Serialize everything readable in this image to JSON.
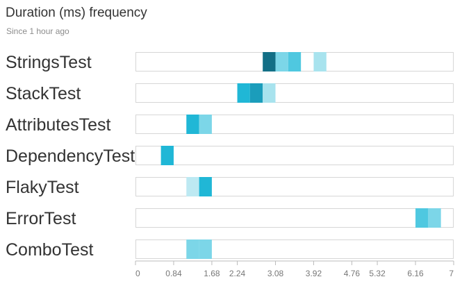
{
  "header": {
    "title": "Duration (ms) frequency",
    "subtitle": "Since 1 hour ago"
  },
  "colors": {
    "track_border": "#d6d6d6",
    "axis": "#bbbbbb",
    "bin_levels": [
      "#bde9f2",
      "#a8e3ee",
      "#7cd6e8",
      "#4fc8e0",
      "#20b7d6",
      "#1b9dbb",
      "#136f86"
    ]
  },
  "chart_data": {
    "type": "heatmap",
    "title": "Duration (ms) frequency",
    "subtitle": "Since 1 hour ago",
    "xlabel": "",
    "ylabel": "",
    "xlim": [
      0,
      7
    ],
    "x_ticks": [
      "0",
      "0.84",
      "1.68",
      "2.24",
      "3.08",
      "3.92",
      "4.76",
      "5.32",
      "6.16",
      "7"
    ],
    "x_tick_values": [
      0,
      0.84,
      1.68,
      2.24,
      3.08,
      3.92,
      4.76,
      5.32,
      6.16,
      7
    ],
    "bin_width": 0.28,
    "rows": [
      {
        "label": "StringsTest",
        "bins": [
          {
            "start": 2.8,
            "level": 6
          },
          {
            "start": 3.08,
            "level": 2
          },
          {
            "start": 3.36,
            "level": 3
          },
          {
            "start": 3.92,
            "level": 1
          }
        ]
      },
      {
        "label": "StackTest",
        "bins": [
          {
            "start": 2.24,
            "level": 4
          },
          {
            "start": 2.52,
            "level": 5
          },
          {
            "start": 2.8,
            "level": 1
          }
        ]
      },
      {
        "label": "AttributesTest",
        "bins": [
          {
            "start": 1.12,
            "level": 4
          },
          {
            "start": 1.4,
            "level": 2
          }
        ]
      },
      {
        "label": "DependencyTest",
        "bins": [
          {
            "start": 0.56,
            "level": 4
          }
        ]
      },
      {
        "label": "FlakyTest",
        "bins": [
          {
            "start": 1.12,
            "level": 0
          },
          {
            "start": 1.4,
            "level": 4
          }
        ]
      },
      {
        "label": "ErrorTest",
        "bins": [
          {
            "start": 6.16,
            "level": 3
          },
          {
            "start": 6.44,
            "level": 2
          }
        ]
      },
      {
        "label": "ComboTest",
        "bins": [
          {
            "start": 1.12,
            "level": 2
          },
          {
            "start": 1.4,
            "level": 2
          }
        ]
      }
    ]
  }
}
